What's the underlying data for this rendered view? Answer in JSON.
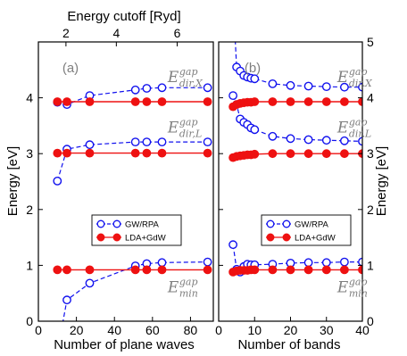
{
  "figure": {
    "top_axis_label": "Energy cutoff [Ryd]",
    "left_axis_label": "Energy [eV]",
    "right_axis_label": "Energy [eV]"
  },
  "chart_data": [
    {
      "type": "line",
      "panel_label": "(a)",
      "xlabel": "Number of plane waves",
      "ylabel": "Energy [eV]",
      "xlim": [
        0,
        92
      ],
      "ylim": [
        0,
        5
      ],
      "xticks": [
        0,
        20,
        40,
        60,
        80
      ],
      "yticks": [
        0,
        1,
        2,
        3,
        4
      ],
      "top_axis": {
        "label": "Energy cutoff [Ryd]",
        "ticks": [
          {
            "label": "2",
            "x": 14.5
          },
          {
            "label": "4",
            "x": 41
          },
          {
            "label": "6",
            "x": 73
          }
        ]
      },
      "grid": false,
      "legend": {
        "placement": "center-right",
        "entries": [
          {
            "label": "GW/RPA",
            "style": "open-circle-dashed",
            "color": "#1111ee"
          },
          {
            "label": "LDA+GdW",
            "style": "filled-circle-solid",
            "color": "#ee1111"
          }
        ]
      },
      "annotations": [
        {
          "base": "E",
          "sup": "gap",
          "sub": "dir,X",
          "x": 68,
          "y": 4.28
        },
        {
          "base": "E",
          "sup": "gap",
          "sub": "dir,L",
          "x": 68,
          "y": 3.38
        },
        {
          "base": "E",
          "sup": "gap",
          "sub": "min",
          "x": 68,
          "y": 0.52
        }
      ],
      "series": [
        {
          "name": "GW/RPA",
          "group": "dir,X",
          "x": [
            10,
            15,
            27,
            51,
            57,
            65,
            89
          ],
          "y": [
            3.92,
            3.88,
            4.04,
            4.14,
            4.17,
            4.18,
            4.18
          ]
        },
        {
          "name": "GW/RPA",
          "group": "dir,L",
          "x": [
            10,
            15,
            27,
            51,
            57,
            65,
            89
          ],
          "y": [
            2.51,
            3.08,
            3.16,
            3.21,
            3.21,
            3.21,
            3.21
          ]
        },
        {
          "name": "GW/RPA",
          "group": "min",
          "x": [
            10,
            15,
            27,
            51,
            57,
            65,
            89
          ],
          "y": [
            -0.55,
            0.38,
            0.68,
            0.99,
            1.03,
            1.05,
            1.06
          ]
        },
        {
          "name": "LDA+GdW",
          "group": "dir,X",
          "x": [
            10,
            15,
            27,
            51,
            57,
            65,
            89
          ],
          "y": [
            3.93,
            3.93,
            3.93,
            3.93,
            3.93,
            3.93,
            3.93
          ]
        },
        {
          "name": "LDA+GdW",
          "group": "dir,L",
          "x": [
            10,
            15,
            27,
            51,
            57,
            65,
            89
          ],
          "y": [
            3.01,
            3.01,
            3.01,
            3.01,
            3.01,
            3.01,
            3.01
          ]
        },
        {
          "name": "LDA+GdW",
          "group": "min",
          "x": [
            10,
            15,
            27,
            51,
            57,
            65,
            89
          ],
          "y": [
            0.92,
            0.92,
            0.92,
            0.92,
            0.92,
            0.92,
            0.92
          ]
        }
      ]
    },
    {
      "type": "line",
      "panel_label": "(b)",
      "xlabel": "Number of bands",
      "ylabel": "Energy [eV]",
      "xlim": [
        0,
        40
      ],
      "ylim": [
        0,
        5
      ],
      "xticks": [
        0,
        10,
        20,
        30,
        40
      ],
      "yticks": [
        0,
        1,
        2,
        3,
        4,
        5
      ],
      "grid": false,
      "legend": {
        "placement": "center-right",
        "entries": [
          {
            "label": "GW/RPA",
            "style": "open-circle-dashed",
            "color": "#1111ee"
          },
          {
            "label": "LDA+GdW",
            "style": "filled-circle-solid",
            "color": "#ee1111"
          }
        ]
      },
      "annotations": [
        {
          "base": "E",
          "sup": "gap",
          "sub": "dir,X",
          "x": 33,
          "y": 4.28
        },
        {
          "base": "E",
          "sup": "gap",
          "sub": "dir,L",
          "x": 33,
          "y": 3.38
        },
        {
          "base": "E",
          "sup": "gap",
          "sub": "min",
          "x": 33,
          "y": 0.52
        }
      ],
      "series": [
        {
          "name": "GW/RPA",
          "group": "dir,X",
          "x": [
            4,
            5,
            6,
            7,
            8,
            9,
            10,
            15,
            20,
            25,
            30,
            35,
            40
          ],
          "y": [
            5.8,
            4.55,
            4.48,
            4.4,
            4.37,
            4.35,
            4.34,
            4.25,
            4.22,
            4.21,
            4.2,
            4.19,
            4.19
          ]
        },
        {
          "name": "GW/RPA",
          "group": "dir,L",
          "x": [
            4,
            5,
            6,
            7,
            8,
            9,
            10,
            15,
            20,
            25,
            30,
            35,
            40
          ],
          "y": [
            4.04,
            3.88,
            3.62,
            3.56,
            3.52,
            3.46,
            3.43,
            3.31,
            3.27,
            3.25,
            3.24,
            3.23,
            3.22
          ]
        },
        {
          "name": "GW/RPA",
          "group": "min",
          "x": [
            4,
            5,
            6,
            7,
            8,
            9,
            10,
            15,
            20,
            25,
            30,
            35,
            40
          ],
          "y": [
            1.37,
            0.93,
            0.88,
            0.98,
            1.02,
            1.01,
            1.01,
            1.02,
            1.04,
            1.05,
            1.05,
            1.06,
            1.06
          ]
        },
        {
          "name": "LDA+GdW",
          "group": "dir,X",
          "x": [
            4,
            5,
            6,
            7,
            8,
            9,
            10,
            15,
            20,
            25,
            30,
            35,
            40
          ],
          "y": [
            3.84,
            3.88,
            3.9,
            3.91,
            3.92,
            3.92,
            3.93,
            3.93,
            3.93,
            3.93,
            3.93,
            3.93,
            3.93
          ]
        },
        {
          "name": "LDA+GdW",
          "group": "dir,L",
          "x": [
            4,
            5,
            6,
            7,
            8,
            9,
            10,
            15,
            20,
            25,
            30,
            35,
            40
          ],
          "y": [
            2.93,
            2.95,
            2.96,
            2.97,
            2.98,
            2.98,
            2.99,
            3.0,
            3.0,
            3.0,
            3.0,
            3.0,
            3.0
          ]
        },
        {
          "name": "LDA+GdW",
          "group": "min",
          "x": [
            4,
            5,
            6,
            7,
            8,
            9,
            10,
            15,
            20,
            25,
            30,
            35,
            40
          ],
          "y": [
            0.88,
            0.9,
            0.91,
            0.91,
            0.91,
            0.92,
            0.92,
            0.92,
            0.92,
            0.92,
            0.92,
            0.92,
            0.92
          ]
        }
      ]
    }
  ]
}
